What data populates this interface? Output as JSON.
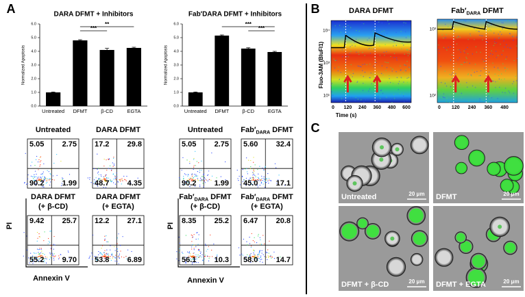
{
  "panels": [
    "A",
    "B",
    "C"
  ],
  "chart_data": [
    {
      "type": "bar",
      "title": "DARA DFMT + Inhibitors",
      "y_label": "Normalized Apoptosis",
      "categories": [
        "Untreated",
        "DFMT",
        "β-CD",
        "EGTA"
      ],
      "values": [
        1.0,
        4.8,
        4.1,
        4.25
      ],
      "errors": [
        0.03,
        0.05,
        0.12,
        0.05
      ],
      "color": "#000000",
      "ylim": [
        0,
        6
      ],
      "yticks": [
        {
          "value": 0,
          "label": "0.0"
        },
        {
          "value": 1,
          "label": "1.0"
        },
        {
          "value": 2,
          "label": "2.0"
        },
        {
          "value": 3,
          "label": "3.0"
        },
        {
          "value": 4,
          "label": "4.0"
        },
        {
          "value": 5,
          "label": "5.0"
        },
        {
          "value": 6,
          "label": "6.0"
        }
      ],
      "significance": [
        {
          "label": "***",
          "between": [
            "DFMT",
            "β-CD"
          ]
        },
        {
          "label": "**",
          "between": [
            "DFMT",
            "EGTA"
          ]
        }
      ]
    },
    {
      "type": "bar",
      "title": "Fab′DARA DFMT + Inhibitors",
      "y_label": "Normalized Apoptosis",
      "categories": [
        "Untreated",
        "DFMT",
        "β-CD",
        "EGTA"
      ],
      "values": [
        1.0,
        5.15,
        4.2,
        3.95
      ],
      "errors": [
        0.03,
        0.05,
        0.06,
        0.05
      ],
      "color": "#000000",
      "ylim": [
        0,
        6
      ],
      "yticks": [
        {
          "value": 0,
          "label": "0.0"
        },
        {
          "value": 1,
          "label": "1.0"
        },
        {
          "value": 2,
          "label": "2.0"
        },
        {
          "value": 3,
          "label": "3.0"
        },
        {
          "value": 4,
          "label": "4.0"
        },
        {
          "value": 5,
          "label": "5.0"
        },
        {
          "value": 6,
          "label": "6.0"
        }
      ],
      "significance": [
        {
          "label": "***",
          "between": [
            "β-CD",
            "EGTA"
          ]
        },
        {
          "label": "***",
          "between": [
            "DFMT",
            "EGTA"
          ]
        }
      ]
    }
  ],
  "flow": {
    "y_label": "PI",
    "x_label": "Annexin V",
    "groups": [
      [
        {
          "title": [
            "Untreated"
          ],
          "q": [
            "5.05",
            "2.75",
            "90.2",
            "1.99"
          ]
        },
        {
          "title": [
            "DARA DFMT"
          ],
          "q": [
            "17.2",
            "29.8",
            "48.7",
            "4.35"
          ]
        },
        {
          "title": [
            "DARA DFMT"
          ],
          "title2": "(+ β-CD)",
          "q": [
            "9.42",
            "25.7",
            "55.2",
            "9.70"
          ]
        },
        {
          "title": [
            "DARA DFMT"
          ],
          "title2": "(+ EGTA)",
          "q": [
            "12.2",
            "27.1",
            "53.8",
            "6.89"
          ]
        }
      ],
      [
        {
          "title": [
            "Untreated"
          ],
          "q": [
            "5.05",
            "2.75",
            "90.2",
            "1.99"
          ]
        },
        {
          "title": [
            "Fab′",
            "DARA",
            " DFMT"
          ],
          "q": [
            "5.60",
            "32.4",
            "45.0",
            "17.1"
          ]
        },
        {
          "title": [
            "Fab′",
            "DARA",
            " DFMT"
          ],
          "title2": "(+ β-CD)",
          "q": [
            "8.35",
            "25.2",
            "56.1",
            "10.3"
          ]
        },
        {
          "title": [
            "Fab′",
            "DARA",
            " DFMT"
          ],
          "title2": "(+ EGTA)",
          "q": [
            "6.47",
            "20.8",
            "58.0",
            "14.7"
          ]
        }
      ]
    ]
  },
  "heatmaps": {
    "y_label": "Fluo-3AM (BluFl1)",
    "x_label": "Time (s)",
    "plots": [
      {
        "title": [
          "DARA DFMT"
        ],
        "xticks": [
          "0",
          "120",
          "240",
          "360",
          "480",
          "600"
        ],
        "yticks": [
          "10⁴",
          "10³",
          "10¹"
        ]
      },
      {
        "title": [
          "Fab′",
          "DARA",
          " DFMT"
        ],
        "xticks": [
          "0",
          "120",
          "240",
          "360",
          "480"
        ],
        "yticks": [
          "10³",
          "10²"
        ]
      }
    ]
  },
  "micrographs": [
    {
      "label": "Untreated",
      "scale": "20 μm"
    },
    {
      "label": "DFMT",
      "scale": "20 μm"
    },
    {
      "label": "DFMT + β-CD",
      "scale": "20 μm"
    },
    {
      "label": "DFMT + EGTA",
      "scale": "20 μm"
    }
  ]
}
